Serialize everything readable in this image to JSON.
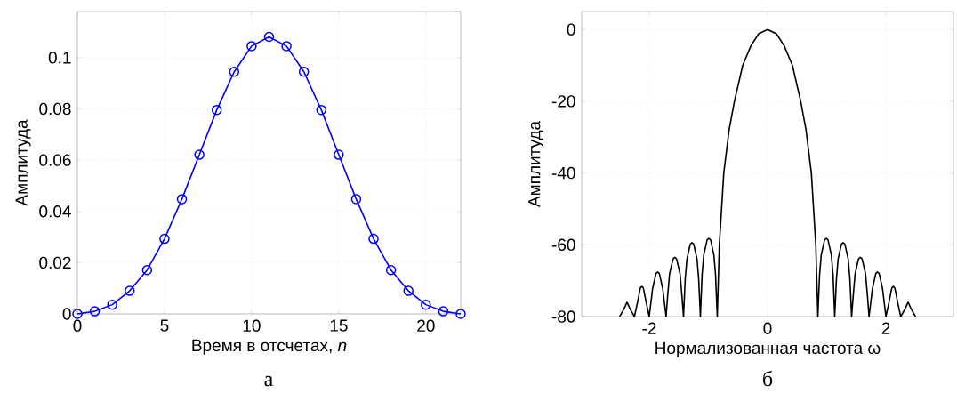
{
  "chart_data": [
    {
      "type": "line",
      "xlabel": "Время в отсчетах, *n*",
      "ylabel": "Амплитуда",
      "annotations": [
        "а"
      ],
      "x": [
        0,
        1,
        2,
        3,
        4,
        5,
        6,
        7,
        8,
        9,
        10,
        11,
        12,
        13,
        14,
        15,
        16,
        17,
        18,
        19,
        20,
        21,
        22
      ],
      "values": [
        0,
        0.001,
        0.0036,
        0.009,
        0.0171,
        0.0293,
        0.0448,
        0.0621,
        0.0796,
        0.0945,
        0.1045,
        0.1081,
        0.1045,
        0.0945,
        0.0796,
        0.0621,
        0.0448,
        0.0293,
        0.0171,
        0.009,
        0.0036,
        0.001,
        0
      ],
      "color": "#0000ff",
      "marker": "circle",
      "grid": true,
      "xlim": [
        0,
        22
      ],
      "xticks": [
        0,
        5,
        10,
        15,
        20
      ],
      "ylim": [
        0,
        0.118
      ],
      "yticks": [
        0,
        0.02,
        0.04,
        0.06,
        0.08,
        0.1
      ]
    },
    {
      "type": "line",
      "xlabel": "Нормализованная частота ω",
      "ylabel": "Амплитуда",
      "annotations": [
        "б"
      ],
      "x": [
        -2.5,
        -2.43,
        -2.375,
        -2.32,
        -2.25,
        -2.2,
        -2.15,
        -2.125,
        -2.1,
        -2.05,
        -2.0,
        -1.943,
        -1.886,
        -1.858,
        -1.829,
        -1.772,
        -1.715,
        -1.686,
        -1.656,
        -1.597,
        -1.568,
        -1.538,
        -1.479,
        -1.45,
        -1.42,
        -1.392,
        -1.363,
        -1.306,
        -1.278,
        -1.249,
        -1.192,
        -1.164,
        -1.135,
        -1.107,
        -1.078,
        -1.021,
        -0.993,
        -0.964,
        -0.907,
        -0.879,
        -0.85,
        -0.815,
        -0.74,
        -0.65,
        -0.56,
        -0.42,
        -0.28,
        -0.15,
        0,
        0.15,
        0.28,
        0.42,
        0.56,
        0.65,
        0.74,
        0.815,
        0.85,
        0.879,
        0.907,
        0.964,
        0.993,
        1.021,
        1.078,
        1.107,
        1.135,
        1.164,
        1.192,
        1.249,
        1.278,
        1.306,
        1.363,
        1.392,
        1.42,
        1.45,
        1.479,
        1.538,
        1.568,
        1.597,
        1.656,
        1.686,
        1.715,
        1.772,
        1.829,
        1.858,
        1.886,
        1.943,
        2.0,
        2.05,
        2.1,
        2.125,
        2.15,
        2.2,
        2.25,
        2.32,
        2.375,
        2.43,
        2.5
      ],
      "values": [
        -80,
        -78,
        -76,
        -78,
        -80,
        -76.2,
        -72,
        -71.6,
        -72,
        -76.2,
        -80,
        -72.2,
        -68,
        -67.6,
        -68,
        -72.2,
        -80,
        -73.7,
        -68.1,
        -63.9,
        -63.5,
        -63.9,
        -68.1,
        -73.7,
        -80,
        -69.6,
        -64,
        -59.8,
        -59.4,
        -59.8,
        -64,
        -69.6,
        -80,
        -68.4,
        -62.8,
        -58.6,
        -58.2,
        -58.6,
        -62.8,
        -68.4,
        -80,
        -60,
        -40,
        -28,
        -20,
        -10,
        -4.5,
        -1.2,
        0,
        -1.2,
        -4.5,
        -10,
        -20,
        -28,
        -40,
        -60,
        -80,
        -68.4,
        -62.8,
        -58.6,
        -58.2,
        -58.6,
        -62.8,
        -68.4,
        -80,
        -69.6,
        -64,
        -59.8,
        -59.4,
        -59.8,
        -64,
        -69.6,
        -80,
        -73.7,
        -68.1,
        -63.9,
        -63.5,
        -63.9,
        -68.1,
        -73.7,
        -80,
        -72.2,
        -68,
        -67.6,
        -68,
        -72.2,
        -80,
        -76.2,
        -72,
        -71.6,
        -72,
        -76.2,
        -80,
        -78,
        -76,
        -78,
        -80
      ],
      "color": "#000000",
      "grid": true,
      "xlim": [
        -3.1416,
        3.1416
      ],
      "xticks": [
        -2,
        0,
        2
      ],
      "ylim": [
        -80,
        5
      ],
      "yticks": [
        0,
        -20,
        -40,
        -60,
        -80
      ]
    }
  ]
}
